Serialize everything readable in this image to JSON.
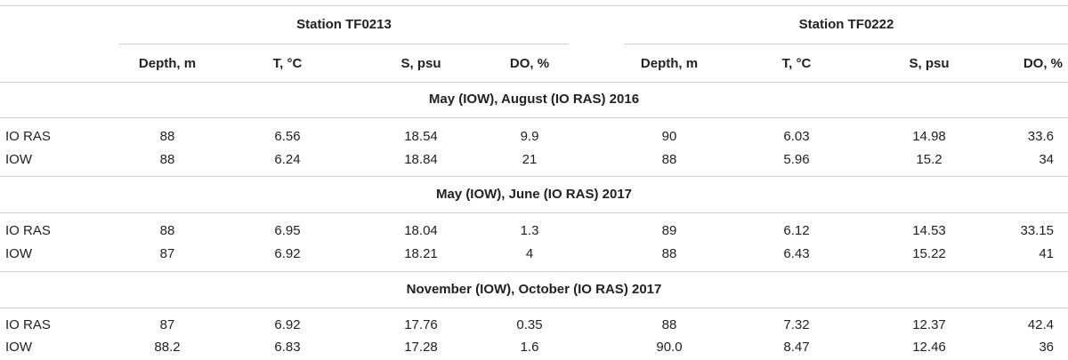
{
  "table": {
    "group_headers": [
      "Station TF0213",
      "Station TF0222"
    ],
    "column_headers": [
      "",
      "Depth, m",
      "T, °C",
      "S, psu",
      "DO, %",
      "Depth, m",
      "T, °C",
      "S, psu",
      "DO, %"
    ],
    "sections": [
      {
        "title": "May (IOW), August (IO RAS) 2016",
        "rows": [
          [
            "IO RAS",
            "88",
            "6.56",
            "18.54",
            "9.9",
            "90",
            "6.03",
            "14.98",
            "33.6"
          ],
          [
            "IOW",
            "88",
            "6.24",
            "18.84",
            "21",
            "88",
            "5.96",
            "15.2",
            "34"
          ]
        ]
      },
      {
        "title": "May (IOW), June (IO RAS) 2017",
        "rows": [
          [
            "IO RAS",
            "88",
            "6.95",
            "18.04",
            "1.3",
            "89",
            "6.12",
            "14.53",
            "33.15"
          ],
          [
            "IOW",
            "87",
            "6.92",
            "18.21",
            "4",
            "88",
            "6.43",
            "15.22",
            "41"
          ]
        ]
      },
      {
        "title": "November (IOW), October (IO RAS) 2017",
        "rows": [
          [
            "IO RAS",
            "87",
            "6.92",
            "17.76",
            "0.35",
            "88",
            "7.32",
            "12.37",
            "42.4"
          ],
          [
            "IOW",
            "88.2",
            "6.83",
            "17.28",
            "1.6",
            "90.0",
            "8.47",
            "12.46",
            "36"
          ]
        ]
      }
    ]
  }
}
